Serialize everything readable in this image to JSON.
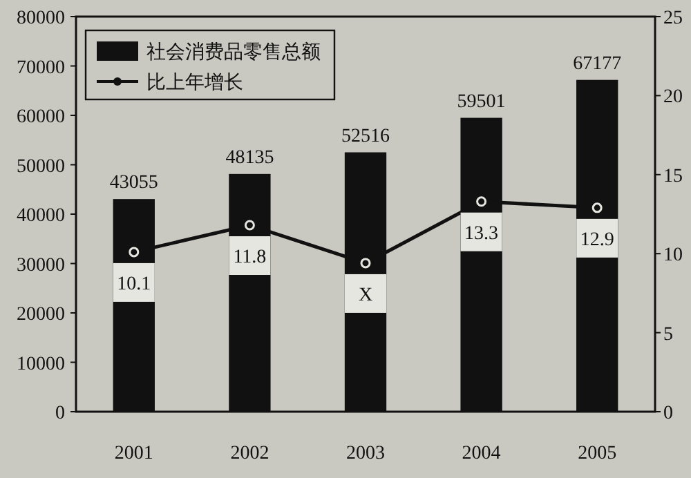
{
  "chart_data": {
    "type": "bar",
    "categories": [
      "2001",
      "2002",
      "2003",
      "2004",
      "2005"
    ],
    "ylim": [
      0,
      80000
    ],
    "yticks": [
      0,
      10000,
      20000,
      30000,
      40000,
      50000,
      60000,
      70000,
      80000
    ],
    "y2lim": [
      0,
      25
    ],
    "y2ticks": [
      0,
      5,
      10,
      15,
      20,
      25
    ],
    "legend": "top left",
    "data_labels": true,
    "series": [
      {
        "name": "社会消费品零售总额",
        "color": "#111111",
        "values": [
          43055,
          48135,
          52516,
          59501,
          67177
        ]
      },
      {
        "name": "比上年增长",
        "type": "line",
        "axis": "y2",
        "color": "#111111",
        "marker": "circle",
        "values": [
          10.1,
          11.8,
          9.4,
          13.3,
          12.9
        ],
        "value_labels": [
          "10.1",
          "11.8",
          "X",
          "13.3",
          "12.9"
        ]
      }
    ]
  }
}
